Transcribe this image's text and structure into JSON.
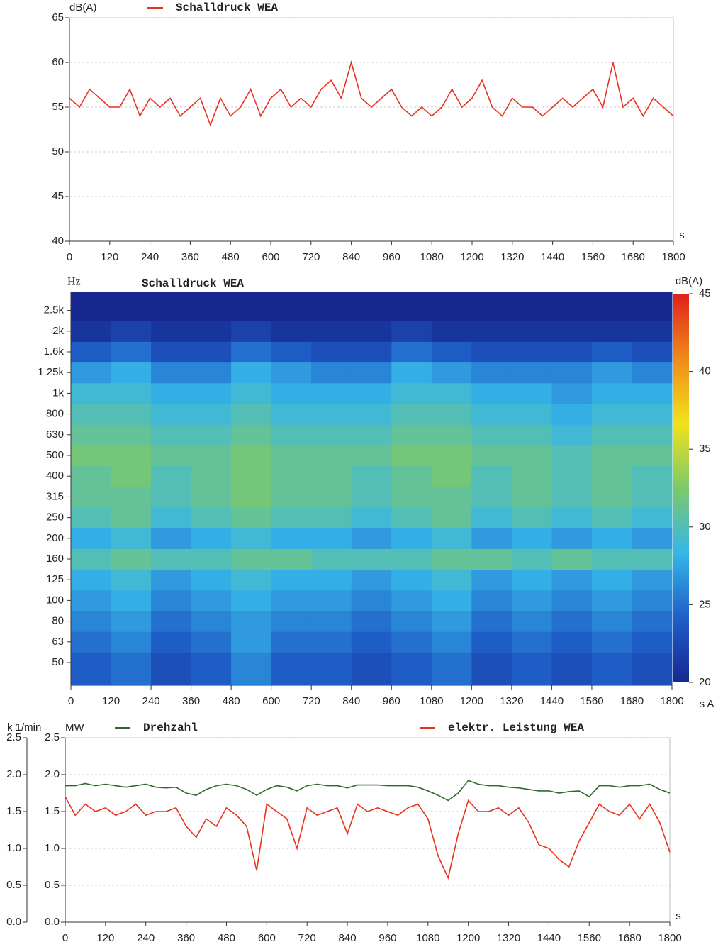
{
  "chart_data": [
    {
      "type": "line",
      "y_label": "dB(A)",
      "x_label": "s",
      "x": [
        0,
        30,
        60,
        90,
        120,
        150,
        180,
        210,
        240,
        270,
        300,
        330,
        360,
        390,
        420,
        450,
        480,
        510,
        540,
        570,
        600,
        630,
        660,
        690,
        720,
        750,
        780,
        810,
        840,
        870,
        900,
        930,
        960,
        990,
        1020,
        1050,
        1080,
        1110,
        1140,
        1170,
        1200,
        1230,
        1260,
        1290,
        1320,
        1350,
        1380,
        1410,
        1440,
        1470,
        1500,
        1530,
        1560,
        1590,
        1620,
        1650,
        1680,
        1710,
        1740,
        1770,
        1800
      ],
      "series": [
        {
          "name": "Schalldruck WEA",
          "color": "#e8321e",
          "values": [
            56,
            55,
            57,
            56,
            55,
            55,
            57,
            54,
            56,
            55,
            56,
            54,
            55,
            56,
            53,
            56,
            54,
            55,
            57,
            54,
            56,
            57,
            55,
            56,
            55,
            57,
            58,
            56,
            60,
            56,
            55,
            56,
            57,
            55,
            54,
            55,
            54,
            55,
            57,
            55,
            56,
            58,
            55,
            54,
            56,
            55,
            55,
            54,
            55,
            56,
            55,
            56,
            57,
            55,
            60,
            55,
            56,
            54,
            56,
            55,
            54
          ]
        }
      ],
      "xlim": [
        0,
        1800
      ],
      "xticks": [
        0,
        120,
        240,
        360,
        480,
        600,
        720,
        840,
        960,
        1080,
        1200,
        1320,
        1440,
        1560,
        1680,
        1800
      ],
      "ylim": [
        40,
        65
      ],
      "yticks": [
        40,
        45,
        50,
        55,
        60,
        65
      ],
      "grid": true
    },
    {
      "type": "heatmap",
      "title": "Schalldruck WEA",
      "y_label": "Hz",
      "x_label": "s A",
      "colorbar_label": "dB(A)",
      "categories": [
        "50",
        "63",
        "80",
        "100",
        "125",
        "160",
        "200",
        "250",
        "315",
        "400",
        "500",
        "630",
        "800",
        "1k",
        "1.25k",
        "1.6k",
        "2k",
        "2.5k"
      ],
      "xbins": [
        0,
        120,
        240,
        360,
        480,
        600,
        720,
        840,
        960,
        1080,
        1200,
        1320,
        1440,
        1560,
        1680,
        1800
      ],
      "values": [
        [
          24,
          25,
          23,
          24,
          26,
          24,
          24,
          23,
          24,
          25,
          23,
          24,
          23,
          24,
          23
        ],
        [
          25,
          26,
          24,
          25,
          27,
          25,
          25,
          24,
          25,
          26,
          24,
          25,
          24,
          25,
          24
        ],
        [
          26,
          27,
          25,
          26,
          27,
          26,
          26,
          25,
          26,
          27,
          25,
          26,
          25,
          26,
          25
        ],
        [
          27,
          28,
          26,
          27,
          28,
          27,
          27,
          26,
          27,
          28,
          26,
          27,
          26,
          27,
          26
        ],
        [
          28,
          29,
          27,
          28,
          29,
          28,
          28,
          27,
          28,
          29,
          27,
          28,
          27,
          28,
          27
        ],
        [
          30,
          31,
          30,
          30,
          31,
          31,
          30,
          30,
          30,
          31,
          31,
          30,
          31,
          30,
          30
        ],
        [
          28,
          29,
          27,
          28,
          29,
          28,
          28,
          27,
          28,
          29,
          27,
          28,
          27,
          28,
          27
        ],
        [
          30,
          31,
          29,
          30,
          31,
          30,
          30,
          29,
          30,
          31,
          29,
          30,
          29,
          30,
          29
        ],
        [
          31,
          31,
          30,
          31,
          32,
          31,
          31,
          30,
          31,
          31,
          30,
          31,
          30,
          31,
          30
        ],
        [
          31,
          32,
          30,
          31,
          32,
          31,
          31,
          30,
          31,
          32,
          30,
          31,
          30,
          31,
          30
        ],
        [
          32,
          32,
          31,
          31,
          32,
          31,
          31,
          31,
          32,
          32,
          31,
          31,
          30,
          31,
          31
        ],
        [
          31,
          31,
          30,
          30,
          31,
          30,
          30,
          30,
          31,
          31,
          30,
          30,
          29,
          30,
          30
        ],
        [
          30,
          30,
          29,
          29,
          30,
          29,
          29,
          29,
          30,
          30,
          29,
          29,
          28,
          29,
          29
        ],
        [
          29,
          29,
          28,
          28,
          29,
          28,
          28,
          28,
          29,
          29,
          28,
          28,
          27,
          28,
          28
        ],
        [
          27,
          28,
          26,
          26,
          28,
          27,
          26,
          26,
          28,
          27,
          26,
          26,
          26,
          27,
          26
        ],
        [
          24,
          25,
          23,
          23,
          25,
          24,
          23,
          23,
          25,
          24,
          23,
          23,
          23,
          24,
          23
        ],
        [
          21,
          22,
          21,
          21,
          22,
          21,
          21,
          21,
          22,
          21,
          21,
          21,
          21,
          21,
          21
        ],
        [
          20,
          20,
          20,
          20,
          20,
          20,
          20,
          20,
          20,
          20,
          20,
          20,
          20,
          20,
          20
        ]
      ],
      "xlim": [
        0,
        1800
      ],
      "xticks": [
        0,
        120,
        240,
        360,
        480,
        600,
        720,
        840,
        960,
        1080,
        1200,
        1320,
        1440,
        1560,
        1680,
        1800
      ],
      "zlim": [
        20,
        45
      ],
      "zticks": [
        20,
        25,
        30,
        35,
        40,
        45
      ],
      "colorscale": [
        "#16288f",
        "#1f5fc8",
        "#36b6e8",
        "#7cc96a",
        "#f2e21a",
        "#f08a1a",
        "#e0201c"
      ]
    },
    {
      "type": "line",
      "y_label": "k 1/min",
      "y2_label": "MW",
      "x_label": "s",
      "x": [
        0,
        30,
        60,
        90,
        120,
        150,
        180,
        210,
        240,
        270,
        300,
        330,
        360,
        390,
        420,
        450,
        480,
        510,
        540,
        570,
        600,
        630,
        660,
        690,
        720,
        750,
        780,
        810,
        840,
        870,
        900,
        930,
        960,
        990,
        1020,
        1050,
        1080,
        1110,
        1140,
        1170,
        1200,
        1230,
        1260,
        1290,
        1320,
        1350,
        1380,
        1410,
        1440,
        1470,
        1500,
        1530,
        1560,
        1590,
        1620,
        1650,
        1680,
        1710,
        1740,
        1770,
        1800
      ],
      "series": [
        {
          "name": "Drehzahl",
          "color": "#2d6b2d",
          "values": [
            1.85,
            1.85,
            1.88,
            1.85,
            1.87,
            1.85,
            1.83,
            1.85,
            1.87,
            1.83,
            1.82,
            1.83,
            1.75,
            1.72,
            1.8,
            1.85,
            1.87,
            1.85,
            1.8,
            1.72,
            1.8,
            1.85,
            1.83,
            1.78,
            1.85,
            1.87,
            1.85,
            1.85,
            1.82,
            1.86,
            1.86,
            1.86,
            1.85,
            1.85,
            1.85,
            1.83,
            1.78,
            1.72,
            1.65,
            1.75,
            1.92,
            1.87,
            1.85,
            1.85,
            1.83,
            1.82,
            1.8,
            1.78,
            1.78,
            1.75,
            1.77,
            1.78,
            1.7,
            1.85,
            1.85,
            1.83,
            1.85,
            1.85,
            1.87,
            1.8,
            1.75
          ]
        },
        {
          "name": "elektr. Leistung WEA",
          "color": "#e8321e",
          "axis": "y2",
          "values": [
            1.7,
            1.45,
            1.6,
            1.5,
            1.55,
            1.45,
            1.5,
            1.6,
            1.45,
            1.5,
            1.5,
            1.55,
            1.3,
            1.15,
            1.4,
            1.3,
            1.55,
            1.45,
            1.3,
            0.7,
            1.6,
            1.5,
            1.4,
            1.0,
            1.55,
            1.45,
            1.5,
            1.55,
            1.2,
            1.6,
            1.5,
            1.55,
            1.5,
            1.45,
            1.55,
            1.6,
            1.4,
            0.9,
            0.6,
            1.2,
            1.65,
            1.5,
            1.5,
            1.55,
            1.45,
            1.55,
            1.35,
            1.05,
            1.0,
            0.85,
            0.75,
            1.1,
            1.35,
            1.6,
            1.5,
            1.45,
            1.6,
            1.4,
            1.6,
            1.35,
            0.95
          ]
        }
      ],
      "xlim": [
        0,
        1800
      ],
      "xticks": [
        0,
        120,
        240,
        360,
        480,
        600,
        720,
        840,
        960,
        1080,
        1200,
        1320,
        1440,
        1560,
        1680,
        1800
      ],
      "ylim": [
        0,
        2.5
      ],
      "yticks": [
        {
          "value": 0,
          "label": "0.0"
        },
        0.5,
        {
          "value": 1,
          "label": "1.0"
        },
        1.5,
        {
          "value": 2,
          "label": "2.0"
        },
        2.5
      ],
      "y2lim": [
        0,
        2.5
      ],
      "y2ticks": [
        {
          "value": 0,
          "label": "0.0"
        },
        0.5,
        {
          "value": 1,
          "label": "1.0"
        },
        1.5,
        {
          "value": 2,
          "label": "2.0"
        },
        2.5
      ],
      "grid": true
    }
  ]
}
